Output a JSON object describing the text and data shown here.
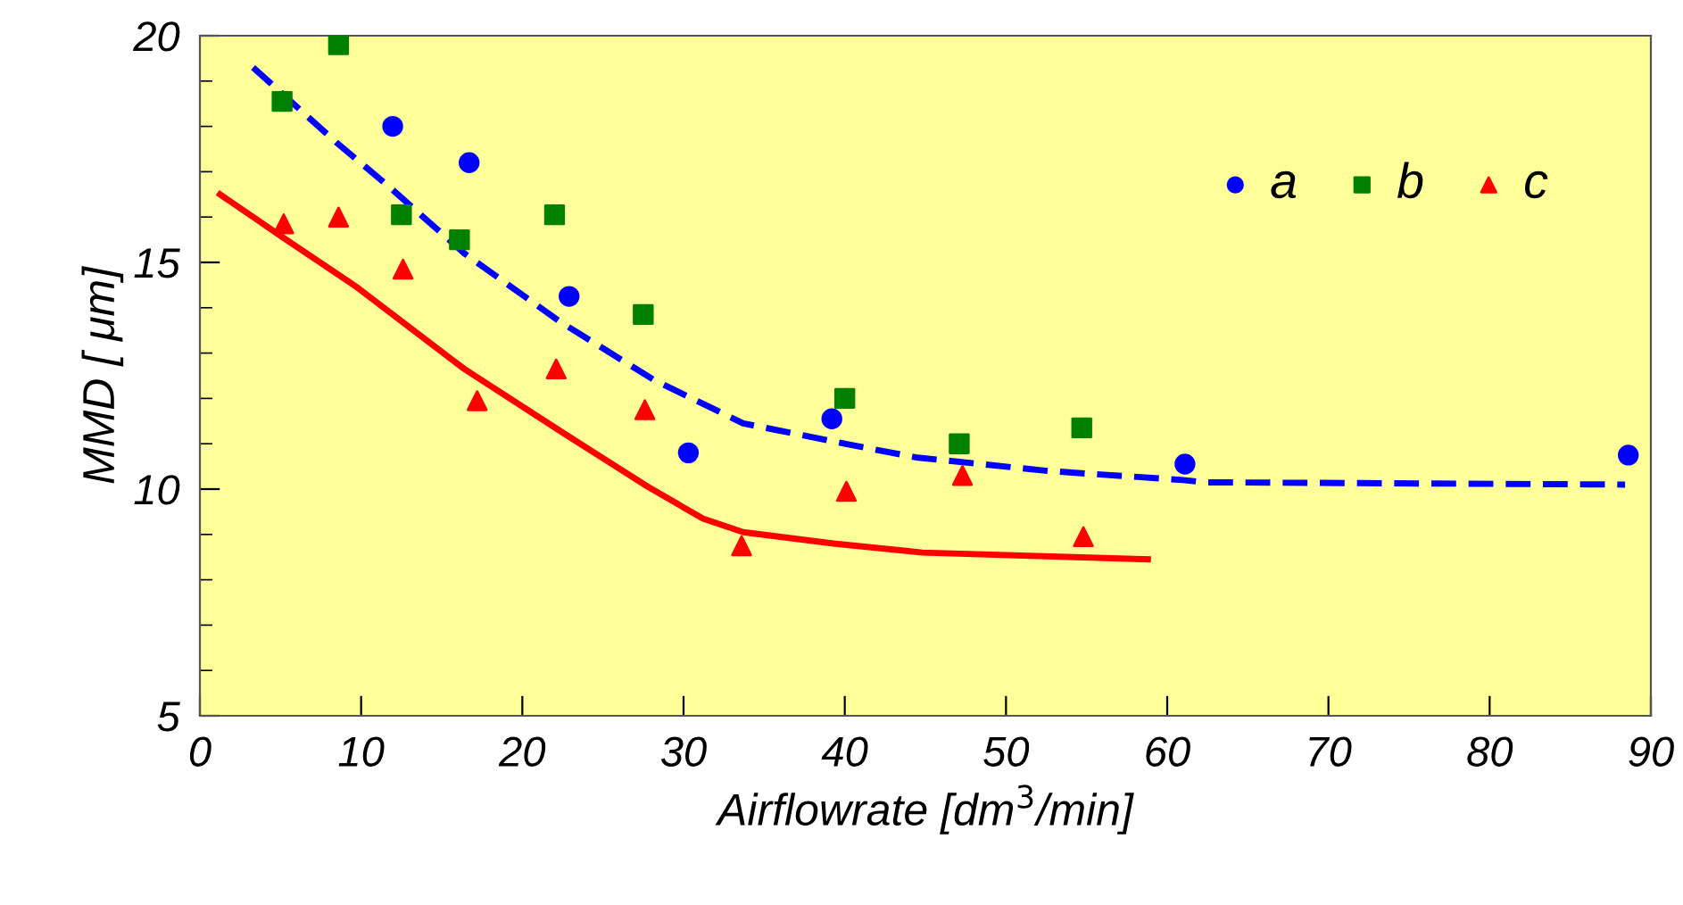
{
  "chart_data": {
    "type": "scatter",
    "xlabel": "Airflowrate [dm$^{3}$/min]",
    "ylabel": "MMD [ μm]",
    "xlim": [
      0,
      90
    ],
    "xticks": [
      0,
      10,
      20,
      30,
      40,
      50,
      60,
      70,
      80,
      90
    ],
    "ylim": [
      5,
      20
    ],
    "yticks": [
      5,
      10,
      15,
      20
    ],
    "grid": false,
    "legend": "top right",
    "series": [
      {
        "name": "a",
        "marker": "circle",
        "color": "#0000ff",
        "x": [
          11.96,
          16.7,
          22.9,
          30.3,
          39.2,
          61.1,
          88.6
        ],
        "values": [
          18.0,
          17.2,
          14.25,
          10.8,
          11.55,
          10.55,
          10.75
        ]
      },
      {
        "name": "b",
        "marker": "square",
        "color": "#008000",
        "x": [
          5.1,
          8.6,
          12.5,
          16.1,
          22.0,
          27.5,
          40.0,
          47.1,
          54.7
        ],
        "values": [
          18.55,
          19.8,
          16.05,
          15.5,
          16.05,
          13.85,
          12.0,
          11.0,
          11.35
        ]
      },
      {
        "name": "c",
        "marker": "triangle",
        "color": "#ff0000",
        "x": [
          5.2,
          8.6,
          12.6,
          17.2,
          22.1,
          27.6,
          33.6,
          40.1,
          47.3,
          54.8
        ],
        "values": [
          15.85,
          16.0,
          14.85,
          11.95,
          12.65,
          11.75,
          8.75,
          9.95,
          10.3,
          8.95
        ]
      },
      {
        "type": "line",
        "line_style": "dashed",
        "color": "#0000ff",
        "x": [
          3.3,
          8.45,
          11.8,
          16.4,
          22.3,
          28.2,
          33.7,
          40.0,
          44.4,
          52.6,
          61.0,
          62.3,
          88.4
        ],
        "values": [
          19.3,
          17.65,
          16.65,
          15.2,
          13.7,
          12.4,
          11.45,
          11.0,
          10.7,
          10.4,
          10.2,
          10.15,
          10.1
        ]
      },
      {
        "type": "line",
        "line_style": "solid",
        "color": "#ff0000",
        "x": [
          1.25,
          4.95,
          9.75,
          16.4,
          22.7,
          27.8,
          31.2,
          33.7,
          39.3,
          44.8,
          58.8
        ],
        "values": [
          16.5,
          15.6,
          14.45,
          12.65,
          11.2,
          10.05,
          9.35,
          9.05,
          8.8,
          8.6,
          8.45
        ]
      }
    ]
  }
}
